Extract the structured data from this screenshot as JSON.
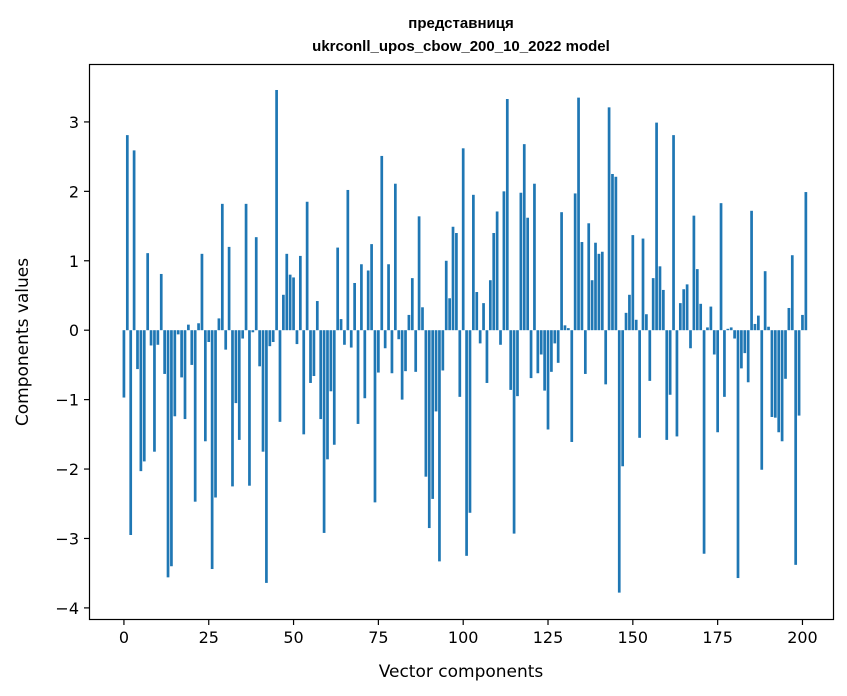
{
  "chart_data": {
    "type": "bar",
    "title_line1": "представниця",
    "title_line2": "ukrconll_upos_cbow_200_10_2022 model",
    "xlabel": "Vector components",
    "ylabel": "Components values",
    "xlim": [
      -10,
      209
    ],
    "ylim": [
      -4.16,
      3.82
    ],
    "xticks": [
      0,
      25,
      50,
      75,
      100,
      125,
      150,
      175,
      200
    ],
    "yticks": [
      -4,
      -3,
      -2,
      -1,
      0,
      1,
      2,
      3
    ],
    "bar_color": "#1f77b4",
    "grid": false,
    "values": [
      -0.97,
      2.81,
      -2.95,
      2.59,
      -0.56,
      -2.03,
      -1.89,
      1.11,
      -0.22,
      -1.75,
      -0.21,
      0.81,
      -0.63,
      -3.56,
      -3.4,
      -1.24,
      -0.06,
      -0.68,
      -1.28,
      0.08,
      -0.5,
      -2.47,
      0.1,
      1.1,
      -1.6,
      -0.17,
      -3.44,
      -2.41,
      0.17,
      1.82,
      -0.28,
      1.2,
      -2.25,
      -1.05,
      -1.58,
      -0.12,
      1.82,
      -2.24,
      -0.03,
      1.34,
      -0.52,
      -1.75,
      -3.64,
      -0.23,
      -0.17,
      3.46,
      -1.32,
      0.51,
      1.1,
      0.8,
      0.76,
      -0.2,
      1.07,
      -1.5,
      1.85,
      -0.76,
      -0.66,
      0.42,
      -1.28,
      -2.92,
      -1.86,
      -0.88,
      -1.65,
      1.19,
      0.16,
      -0.21,
      2.02,
      -0.25,
      0.68,
      -1.35,
      0.95,
      -0.98,
      0.86,
      1.24,
      -2.48,
      -0.61,
      2.51,
      -0.26,
      0.95,
      -0.62,
      2.11,
      -0.13,
      -1.0,
      -0.59,
      0.22,
      0.75,
      -0.6,
      1.64,
      0.33,
      -2.11,
      -2.85,
      -2.43,
      -1.17,
      -3.33,
      -0.58,
      1.0,
      0.46,
      1.49,
      1.4,
      -0.96,
      2.62,
      -3.25,
      -2.63,
      1.95,
      0.55,
      -0.19,
      0.39,
      -0.76,
      0.72,
      1.4,
      1.71,
      -0.21,
      2.0,
      3.33,
      -0.86,
      -2.93,
      -0.95,
      1.98,
      2.68,
      1.62,
      -0.69,
      2.11,
      -0.62,
      -0.35,
      -0.87,
      -1.43,
      -0.6,
      -0.19,
      -0.47,
      1.7,
      0.07,
      0.03,
      -1.61,
      1.97,
      3.35,
      1.27,
      -0.63,
      1.54,
      0.72,
      1.26,
      1.1,
      1.13,
      -0.78,
      3.21,
      2.25,
      2.21,
      -3.78,
      -1.96,
      0.25,
      0.51,
      1.37,
      0.15,
      -1.55,
      1.32,
      0.23,
      -0.73,
      0.75,
      2.99,
      0.92,
      0.58,
      -1.58,
      -0.93,
      2.81,
      -1.53,
      0.39,
      0.59,
      0.66,
      -0.26,
      1.65,
      0.88,
      0.38,
      -3.22,
      0.04,
      0.34,
      -0.35,
      -1.47,
      1.83,
      -0.96,
      0.02,
      0.04,
      -0.12,
      -3.57,
      -0.55,
      -0.33,
      -0.75,
      1.72,
      0.09,
      0.21,
      -2.01,
      0.85,
      0.05,
      -1.25,
      -1.26,
      -1.47,
      -1.6,
      -0.7,
      0.32,
      1.08,
      -3.38,
      -1.23,
      0.22,
      1.99
    ]
  }
}
